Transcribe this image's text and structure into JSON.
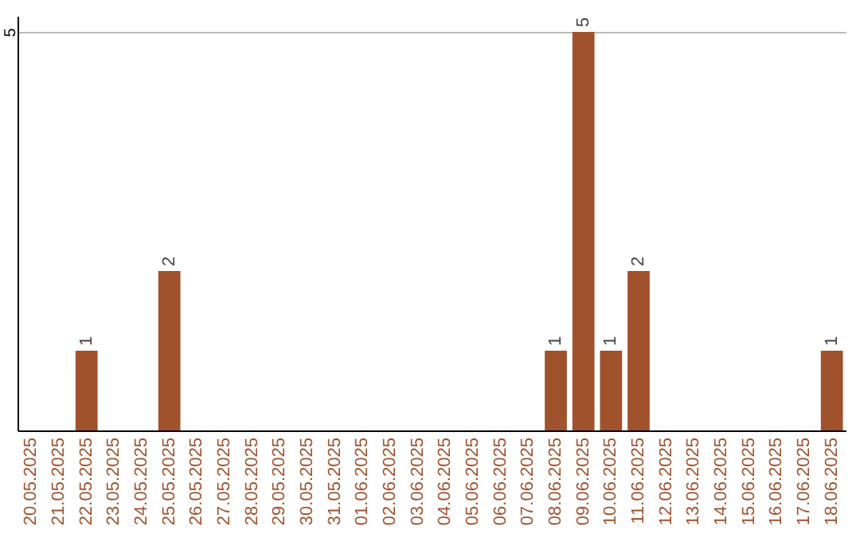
{
  "chart_data": {
    "type": "bar",
    "categories": [
      "20.05.2025",
      "21.05.2025",
      "22.05.2025",
      "23.05.2025",
      "24.05.2025",
      "25.05.2025",
      "26.05.2025",
      "27.05.2025",
      "28.05.2025",
      "29.05.2025",
      "30.05.2025",
      "31.05.2025",
      "01.06.2025",
      "02.06.2025",
      "03.06.2025",
      "04.06.2025",
      "05.06.2025",
      "06.06.2025",
      "07.06.2025",
      "08.06.2025",
      "09.06.2025",
      "10.06.2025",
      "11.06.2025",
      "12.06.2025",
      "13.06.2025",
      "14.06.2025",
      "15.06.2025",
      "16.06.2025",
      "17.06.2025",
      "18.06.2025"
    ],
    "values": [
      0,
      0,
      1,
      0,
      0,
      2,
      0,
      0,
      0,
      0,
      0,
      0,
      0,
      0,
      0,
      0,
      0,
      0,
      0,
      1,
      5,
      1,
      2,
      0,
      0,
      0,
      0,
      0,
      0,
      1
    ],
    "value_labels": [
      null,
      null,
      "1",
      null,
      null,
      "2",
      null,
      null,
      null,
      null,
      null,
      null,
      null,
      null,
      null,
      null,
      null,
      null,
      null,
      "1",
      "5",
      "1",
      "2",
      null,
      null,
      null,
      null,
      null,
      null,
      "1"
    ],
    "color": "#a0522d",
    "ylim": [
      0,
      5.2
    ],
    "yticks": [
      5
    ],
    "grid": "y"
  }
}
